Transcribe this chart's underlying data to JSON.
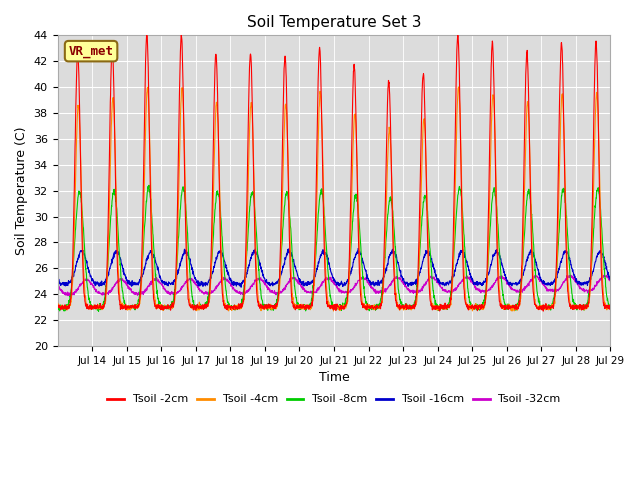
{
  "title": "Soil Temperature Set 3",
  "xlabel": "Time",
  "ylabel": "Soil Temperature (C)",
  "ylim": [
    20,
    44
  ],
  "yticks": [
    20,
    22,
    24,
    26,
    28,
    30,
    32,
    34,
    36,
    38,
    40,
    42,
    44
  ],
  "bg_color": "#dcdcdc",
  "fig_color": "#ffffff",
  "station_label": "VR_met",
  "legend_entries": [
    "Tsoil -2cm",
    "Tsoil -4cm",
    "Tsoil -8cm",
    "Tsoil -16cm",
    "Tsoil -32cm"
  ],
  "line_colors": [
    "#ff0000",
    "#ff8c00",
    "#00cc00",
    "#0000cc",
    "#cc00cc"
  ],
  "start_day": 13,
  "end_day": 29,
  "n_points_per_day": 144,
  "xtick_start": 14,
  "xtick_end": 29
}
